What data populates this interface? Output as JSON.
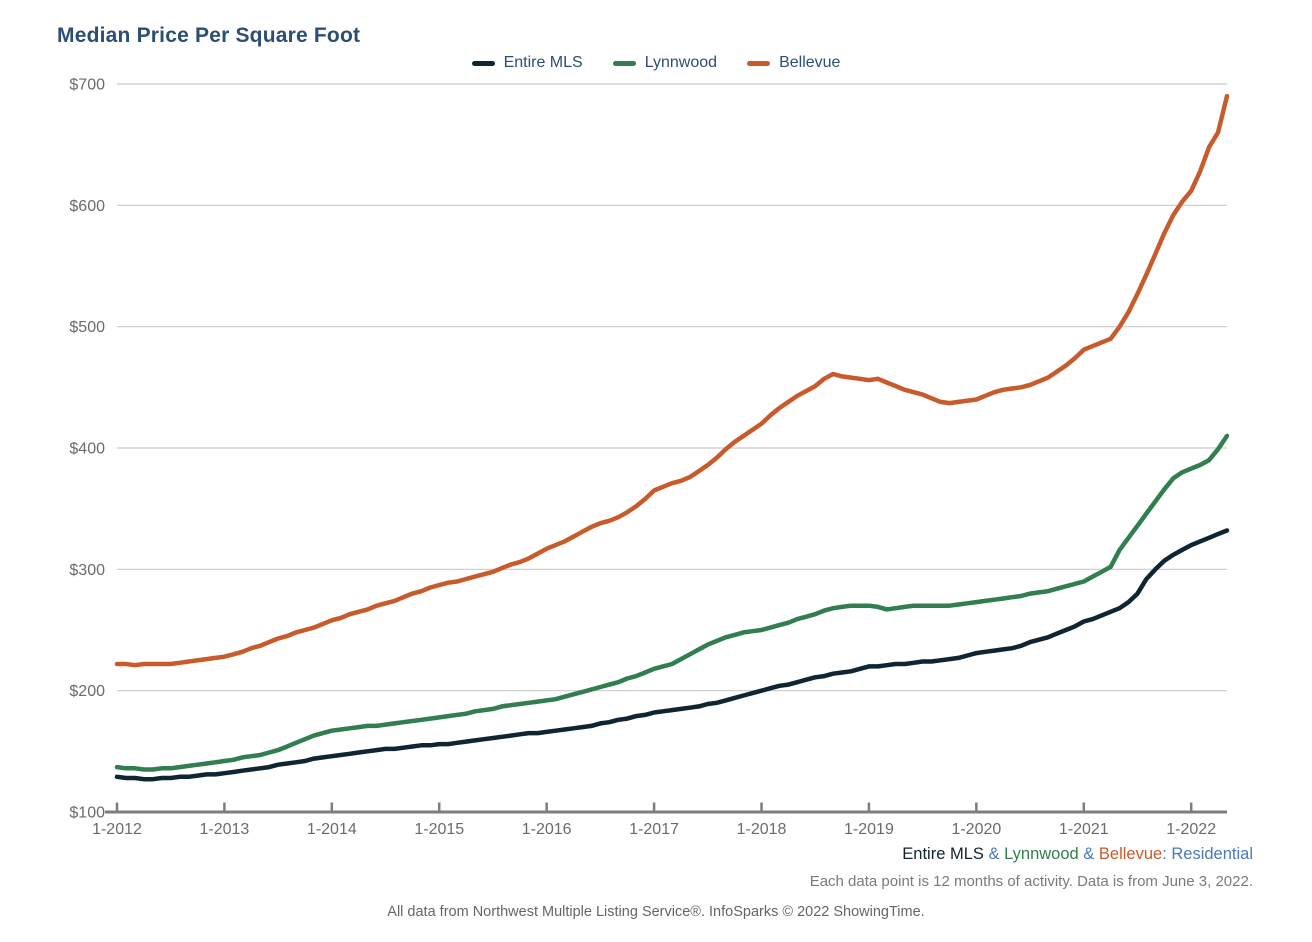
{
  "header": {
    "title": "Median Price Per Square Foot",
    "title_color": "#2d4e74"
  },
  "legend": {
    "items": [
      {
        "label": "Entire MLS",
        "color": "#0f2533"
      },
      {
        "label": "Lynnwood",
        "color": "#317e4f"
      },
      {
        "label": "Bellevue",
        "color": "#c75b2b"
      }
    ]
  },
  "chart_data": {
    "type": "line",
    "title": "Median Price Per Square Foot",
    "x_frequency": "monthly",
    "x_tick_labels": [
      "1-2012",
      "1-2013",
      "1-2014",
      "1-2015",
      "1-2016",
      "1-2017",
      "1-2018",
      "1-2019",
      "1-2020",
      "1-2021",
      "1-2022"
    ],
    "y_tick_labels": [
      "$100",
      "$200",
      "$300",
      "$400",
      "$500",
      "$600",
      "$700"
    ],
    "ylim": [
      100,
      700
    ],
    "grid": true,
    "legend_position": "top",
    "axis_text_color": "#6b6b6b",
    "gridline_color": "#cbcbcb",
    "axis_line_color": "#7d7d7d",
    "series": [
      {
        "name": "Entire MLS",
        "color": "#0f2533",
        "values": [
          129,
          128,
          128,
          127,
          127,
          128,
          128,
          129,
          129,
          130,
          131,
          131,
          132,
          133,
          134,
          135,
          136,
          137,
          139,
          140,
          141,
          142,
          144,
          145,
          146,
          147,
          148,
          149,
          150,
          151,
          152,
          152,
          153,
          154,
          155,
          155,
          156,
          156,
          157,
          158,
          159,
          160,
          161,
          162,
          163,
          164,
          165,
          165,
          166,
          167,
          168,
          169,
          170,
          171,
          173,
          174,
          176,
          177,
          179,
          180,
          182,
          183,
          184,
          185,
          186,
          187,
          189,
          190,
          192,
          194,
          196,
          198,
          200,
          202,
          204,
          205,
          207,
          209,
          211,
          212,
          214,
          215,
          216,
          218,
          220,
          220,
          221,
          222,
          222,
          223,
          224,
          224,
          225,
          226,
          227,
          229,
          231,
          232,
          233,
          234,
          235,
          237,
          240,
          242,
          244,
          247,
          250,
          253,
          257,
          259,
          262,
          265,
          268,
          273,
          280,
          292,
          300,
          307,
          312,
          316,
          320,
          323,
          326,
          329,
          332
        ]
      },
      {
        "name": "Lynnwood",
        "color": "#317e4f",
        "values": [
          137,
          136,
          136,
          135,
          135,
          136,
          136,
          137,
          138,
          139,
          140,
          141,
          142,
          143,
          145,
          146,
          147,
          149,
          151,
          154,
          157,
          160,
          163,
          165,
          167,
          168,
          169,
          170,
          171,
          171,
          172,
          173,
          174,
          175,
          176,
          177,
          178,
          179,
          180,
          181,
          183,
          184,
          185,
          187,
          188,
          189,
          190,
          191,
          192,
          193,
          195,
          197,
          199,
          201,
          203,
          205,
          207,
          210,
          212,
          215,
          218,
          220,
          222,
          226,
          230,
          234,
          238,
          241,
          244,
          246,
          248,
          249,
          250,
          252,
          254,
          256,
          259,
          261,
          263,
          266,
          268,
          269,
          270,
          270,
          270,
          269,
          267,
          268,
          269,
          270,
          270,
          270,
          270,
          270,
          271,
          272,
          273,
          274,
          275,
          276,
          277,
          278,
          280,
          281,
          282,
          284,
          286,
          288,
          290,
          294,
          298,
          302,
          316,
          326,
          336,
          346,
          356,
          366,
          375,
          380,
          383,
          386,
          390,
          399,
          410
        ]
      },
      {
        "name": "Bellevue",
        "color": "#c75b2b",
        "values": [
          222,
          222,
          221,
          222,
          222,
          222,
          222,
          223,
          224,
          225,
          226,
          227,
          228,
          230,
          232,
          235,
          237,
          240,
          243,
          245,
          248,
          250,
          252,
          255,
          258,
          260,
          263,
          265,
          267,
          270,
          272,
          274,
          277,
          280,
          282,
          285,
          287,
          289,
          290,
          292,
          294,
          296,
          298,
          301,
          304,
          306,
          309,
          313,
          317,
          320,
          323,
          327,
          331,
          335,
          338,
          340,
          343,
          347,
          352,
          358,
          365,
          368,
          371,
          373,
          376,
          381,
          386,
          392,
          399,
          405,
          410,
          415,
          420,
          427,
          433,
          438,
          443,
          447,
          451,
          457,
          461,
          459,
          458,
          457,
          456,
          457,
          454,
          451,
          448,
          446,
          444,
          441,
          438,
          437,
          438,
          439,
          440,
          443,
          446,
          448,
          449,
          450,
          452,
          455,
          458,
          463,
          468,
          474,
          481,
          484,
          487,
          490,
          500,
          512,
          527,
          543,
          560,
          577,
          592,
          603,
          612,
          628,
          648,
          660,
          690
        ]
      }
    ]
  },
  "footer": {
    "series_line": [
      {
        "text": "Entire MLS",
        "color": "#10222e"
      },
      {
        "text": " & ",
        "color": "#4a7ab8"
      },
      {
        "text": "Lynnwood",
        "color": "#317e4f"
      },
      {
        "text": " & ",
        "color": "#4a7ab8"
      },
      {
        "text": "Bellevue",
        "color": "#c75b2b"
      },
      {
        "text": ": Residential",
        "color": "#4a7ab8"
      }
    ],
    "note": "Each data point is 12 months of activity. Data is from June 3, 2022.",
    "attribution": "All data from Northwest Multiple Listing Service®. InfoSparks © 2022 ShowingTime."
  }
}
